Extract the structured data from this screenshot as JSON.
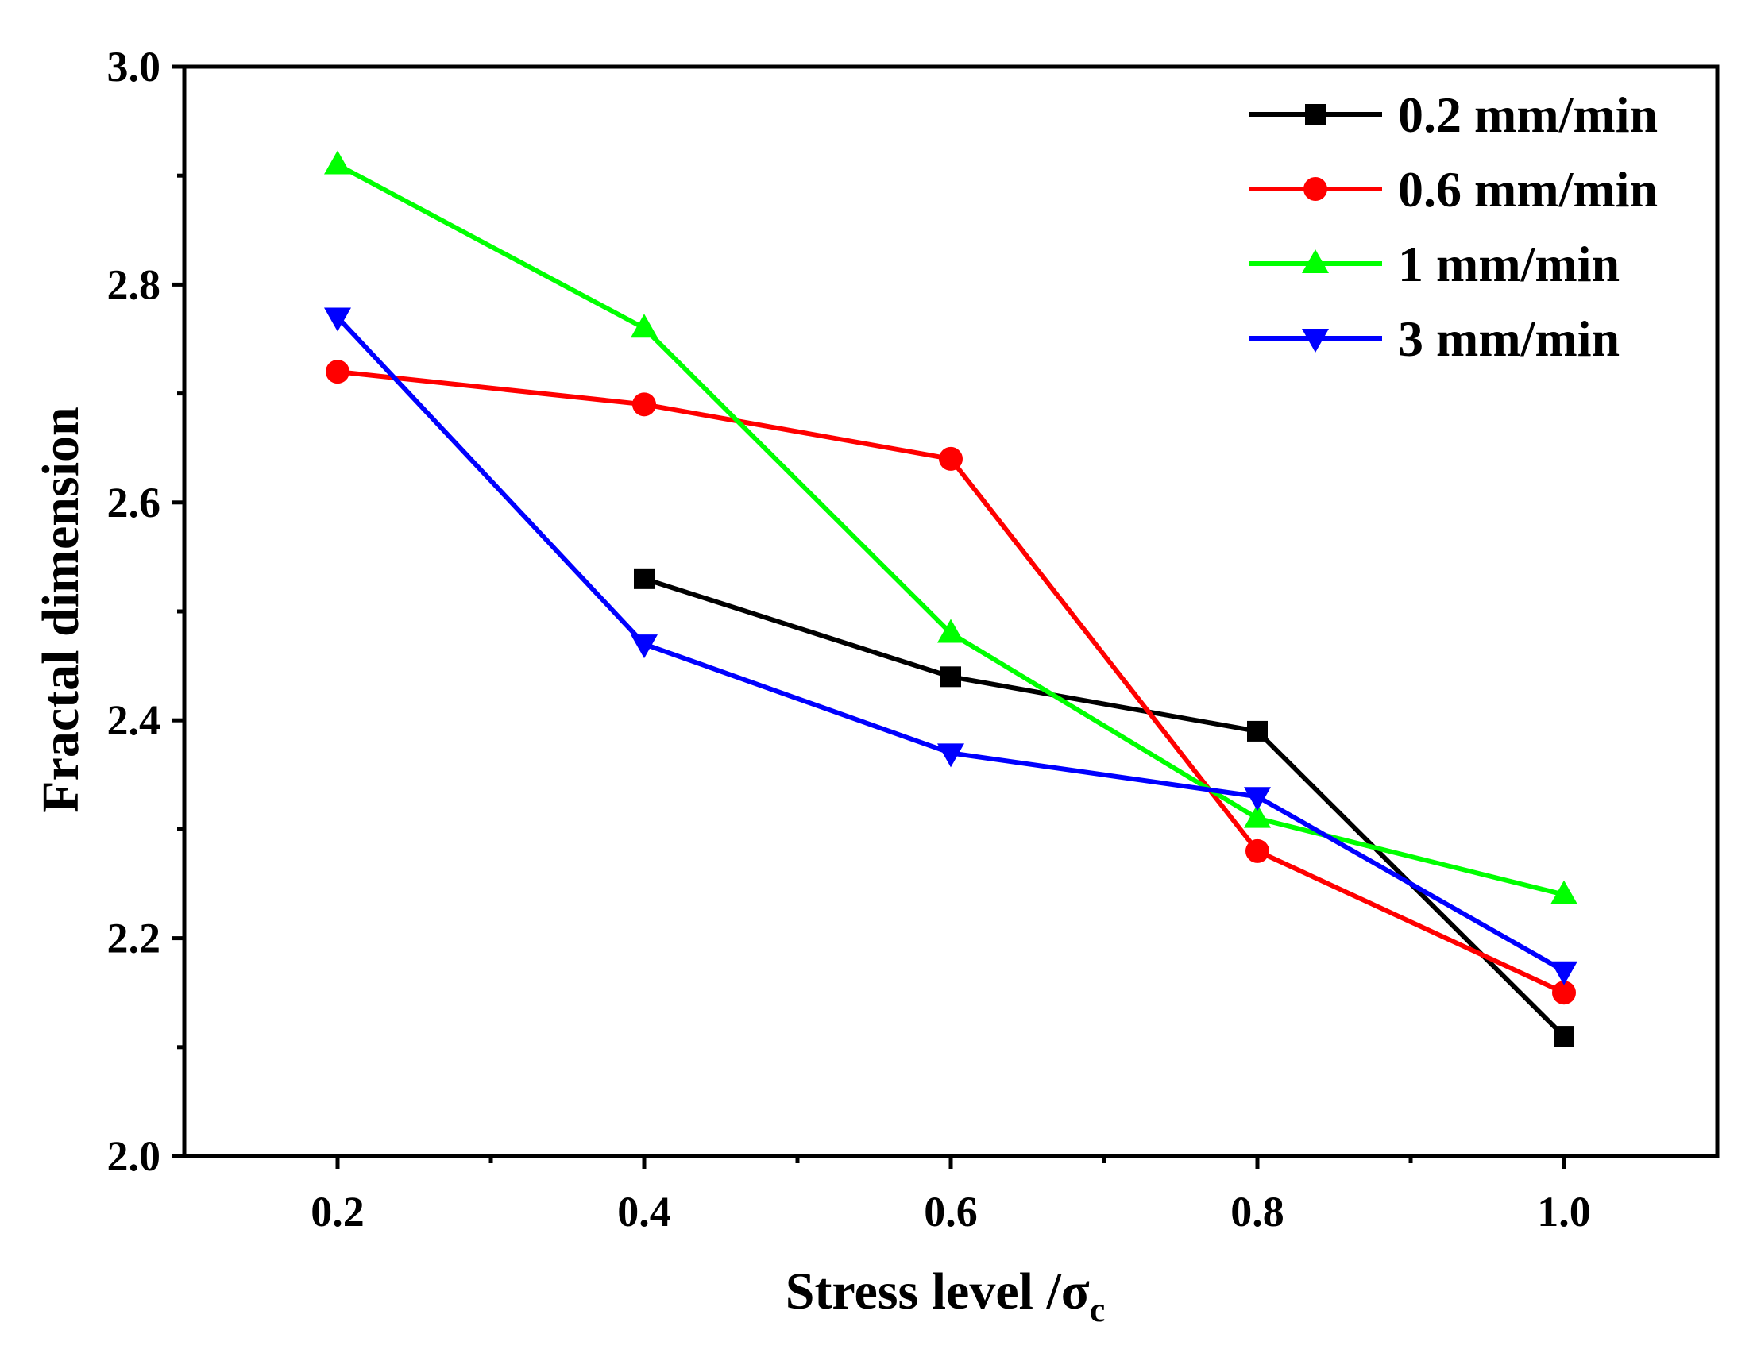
{
  "chart_data": {
    "type": "line",
    "title": "",
    "xlabel": "Stress level /σ",
    "xlabel_subscript": "c",
    "ylabel": "Fractal dimension",
    "xlim": [
      0.1,
      1.1
    ],
    "ylim": [
      2.0,
      3.0
    ],
    "x_ticks": [
      "0.2",
      "0.4",
      "0.6",
      "0.8",
      "1.0"
    ],
    "y_ticks": [
      "2.0",
      "2.2",
      "2.4",
      "2.6",
      "2.8",
      "3.0"
    ],
    "grid": false,
    "legend_position": "top-right",
    "series": [
      {
        "name": "0.2 mm/min",
        "color": "#000000",
        "marker": "square",
        "x": [
          0.4,
          0.6,
          0.8,
          1.0
        ],
        "y": [
          2.53,
          2.44,
          2.39,
          2.11
        ]
      },
      {
        "name": "0.6 mm/min",
        "color": "#ff0000",
        "marker": "circle",
        "x": [
          0.2,
          0.4,
          0.6,
          0.8,
          1.0
        ],
        "y": [
          2.72,
          2.69,
          2.64,
          2.28,
          2.15
        ]
      },
      {
        "name": "1 mm/min",
        "color": "#00ff00",
        "marker": "triangle-up",
        "x": [
          0.2,
          0.4,
          0.6,
          0.8,
          1.0
        ],
        "y": [
          2.91,
          2.76,
          2.48,
          2.31,
          2.24
        ]
      },
      {
        "name": "3 mm/min",
        "color": "#0000ff",
        "marker": "triangle-down",
        "x": [
          0.2,
          0.4,
          0.6,
          0.8,
          1.0
        ],
        "y": [
          2.77,
          2.47,
          2.37,
          2.33,
          2.17
        ]
      }
    ]
  }
}
